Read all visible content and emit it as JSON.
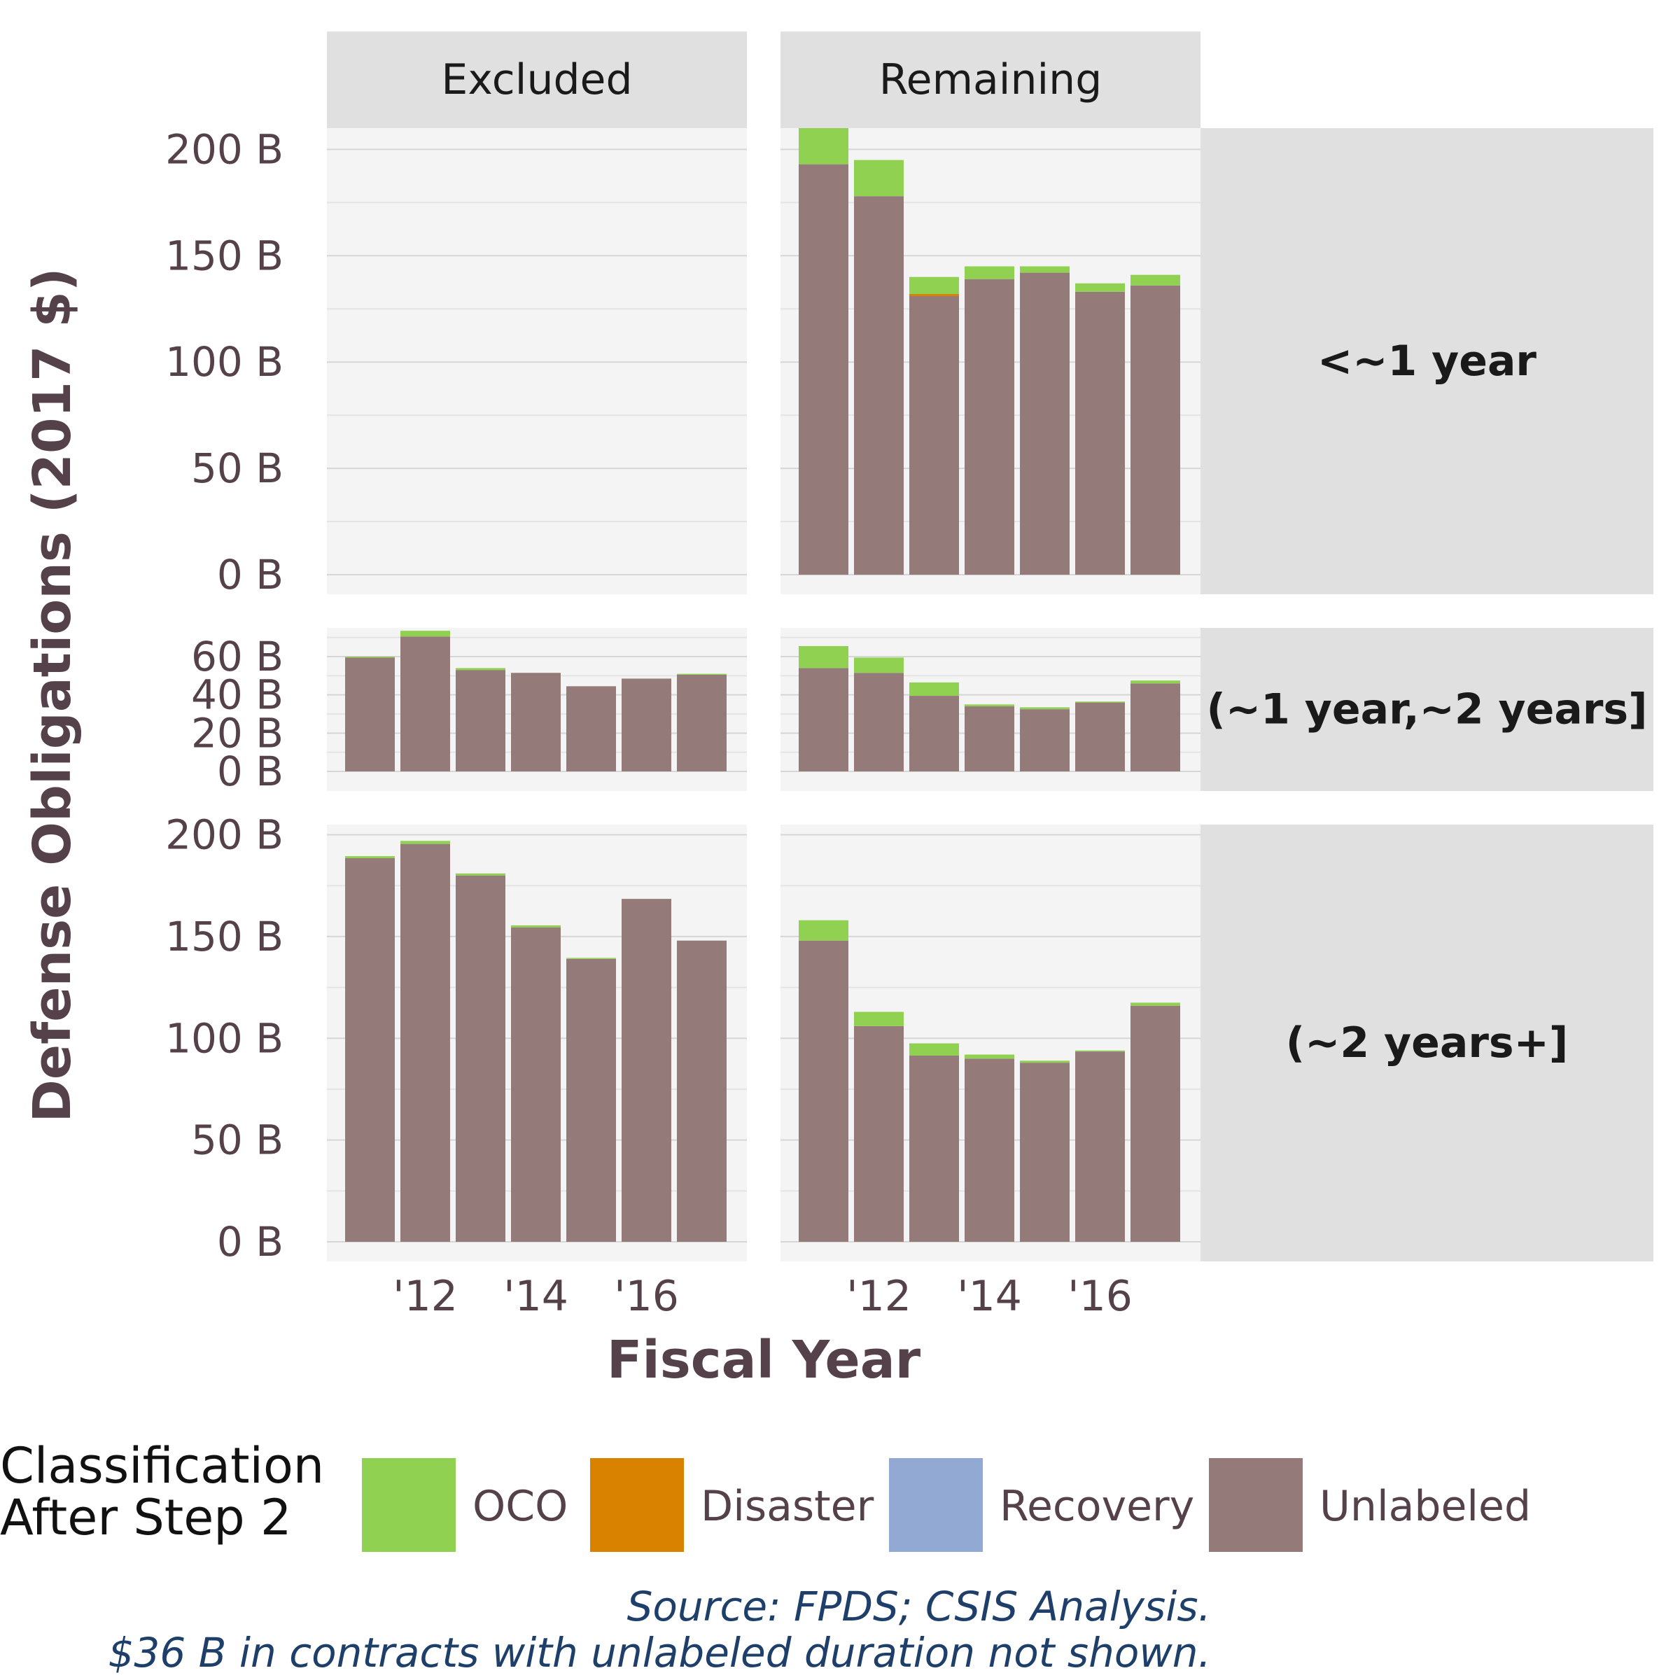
{
  "chart_data": {
    "type": "bar",
    "stacked": true,
    "xlabel": "Fiscal Year",
    "ylabel": "Defense Obligations (2017 $)",
    "x": [
      2011,
      2012,
      2013,
      2014,
      2015,
      2016,
      2017
    ],
    "x_tick_values": [
      2012,
      2014,
      2016
    ],
    "x_tick_labels": [
      "'12",
      "'14",
      "'16"
    ],
    "columns": [
      "Excluded",
      "Remaining"
    ],
    "rows": [
      {
        "label": "<~1 year",
        "ylim": [
          0,
          210
        ],
        "y_ticks": [
          0,
          50,
          100,
          150,
          200
        ],
        "y_tick_labels": [
          "0 B",
          "50 B",
          "100 B",
          "150 B",
          "200 B"
        ]
      },
      {
        "label": "(~1 year,~2 years]",
        "ylim": [
          0,
          75
        ],
        "y_ticks": [
          0,
          20,
          40,
          60
        ],
        "y_tick_labels": [
          "0 B",
          "20 B",
          "40 B",
          "60 B"
        ]
      },
      {
        "label": "(~2 years+]",
        "ylim": [
          0,
          205
        ],
        "y_ticks": [
          0,
          50,
          100,
          150,
          200
        ],
        "y_tick_labels": [
          "0 B",
          "50 B",
          "100 B",
          "150 B",
          "200 B"
        ]
      }
    ],
    "legend": {
      "title_lines": [
        "Classification",
        "After Step 2"
      ],
      "placement": "bottom",
      "entries": [
        {
          "name": "OCO",
          "color": "#91d152"
        },
        {
          "name": "Disaster",
          "color": "#d98200"
        },
        {
          "name": "Recovery",
          "color": "#92a9d3"
        },
        {
          "name": "Unlabeled",
          "color": "#957a7a"
        }
      ]
    },
    "panels": [
      {
        "row": 0,
        "column": 0,
        "series": []
      },
      {
        "row": 0,
        "column": 1,
        "series": [
          {
            "name": "Unlabeled",
            "values": [
              193,
              178,
              131,
              139,
              142,
              133,
              136
            ]
          },
          {
            "name": "Disaster",
            "values": [
              0,
              0,
              1,
              0,
              0,
              0,
              0
            ]
          },
          {
            "name": "OCO",
            "values": [
              17,
              17,
              8,
              6,
              3,
              4,
              5
            ]
          }
        ]
      },
      {
        "row": 1,
        "column": 0,
        "series": [
          {
            "name": "Unlabeled",
            "values": [
              59.5,
              70.5,
              53,
              51.5,
              44.5,
              48.5,
              50.5
            ]
          },
          {
            "name": "OCO",
            "values": [
              0.5,
              3,
              1,
              0,
              0,
              0,
              0.5
            ]
          }
        ]
      },
      {
        "row": 1,
        "column": 1,
        "series": [
          {
            "name": "Unlabeled",
            "values": [
              54,
              51.5,
              39.5,
              34,
              32.5,
              36,
              46
            ]
          },
          {
            "name": "OCO",
            "values": [
              11.5,
              8,
              7,
              1,
              1,
              0.5,
              1.5
            ]
          }
        ]
      },
      {
        "row": 2,
        "column": 0,
        "series": [
          {
            "name": "Unlabeled",
            "values": [
              188.5,
              195.5,
              180,
              154.5,
              139,
              168.5,
              148
            ]
          },
          {
            "name": "OCO",
            "values": [
              1,
              1.5,
              1,
              1,
              0.5,
              0,
              0
            ]
          }
        ]
      },
      {
        "row": 2,
        "column": 1,
        "series": [
          {
            "name": "Unlabeled",
            "values": [
              148,
              106,
              91.5,
              90,
              88,
              93.5,
              116
            ]
          },
          {
            "name": "OCO",
            "values": [
              10,
              7,
              6,
              2,
              1,
              0.5,
              1.5
            ]
          }
        ]
      }
    ],
    "caption_lines": [
      "Source: FPDS; CSIS Analysis.",
      "$36 B in contracts with unlabeled duration not shown."
    ],
    "grid": true
  }
}
